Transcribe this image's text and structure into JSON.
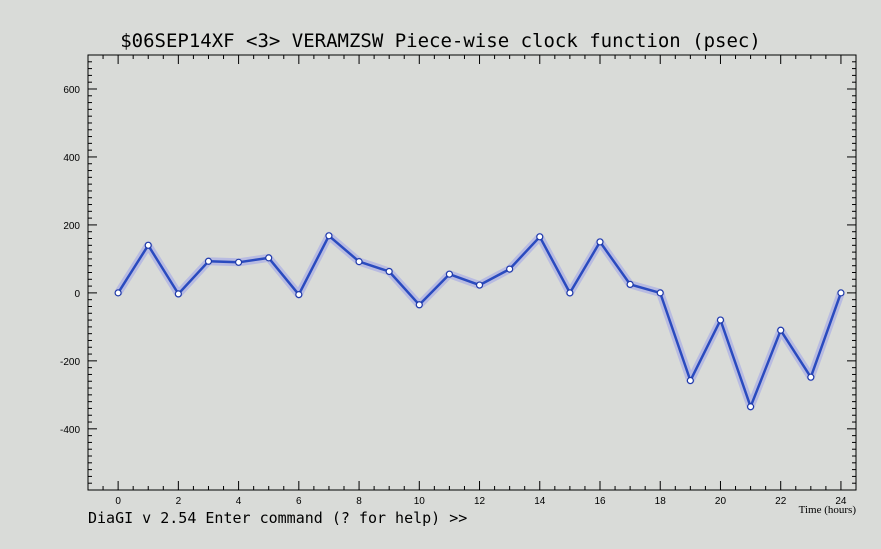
{
  "window": {
    "title": "$06SEP14XF <3>  VERAMZSW  Piece-wise clock function (psec)",
    "status_line": "DiaGI v 2.54  Enter command (? for help) >>"
  },
  "chart_data": {
    "type": "line",
    "title": "$06SEP14XF <3>  VERAMZSW  Piece-wise clock function (psec)",
    "xlabel": "Time (hours)",
    "ylabel": "",
    "xlim": [
      -1,
      24.5
    ],
    "ylim": [
      -580,
      700
    ],
    "x_ticks": [
      0,
      2,
      4,
      6,
      8,
      10,
      12,
      14,
      16,
      18,
      20,
      22,
      24
    ],
    "y_ticks": [
      -400,
      -200,
      0,
      200,
      400,
      600
    ],
    "grid": false,
    "series": [
      {
        "color": "#2a4bbf",
        "x": [
          0,
          1,
          2,
          3,
          4,
          5,
          6,
          7,
          8,
          9,
          10,
          11,
          12,
          13,
          14,
          15,
          16,
          17,
          18,
          19,
          20,
          21,
          22,
          23,
          24
        ],
        "y": [
          0,
          140,
          -3,
          93,
          90,
          103,
          -5,
          168,
          92,
          63,
          -35,
          55,
          23,
          70,
          165,
          0,
          150,
          25,
          0,
          -258,
          -80,
          -335,
          -110,
          -248,
          0
        ]
      }
    ]
  }
}
